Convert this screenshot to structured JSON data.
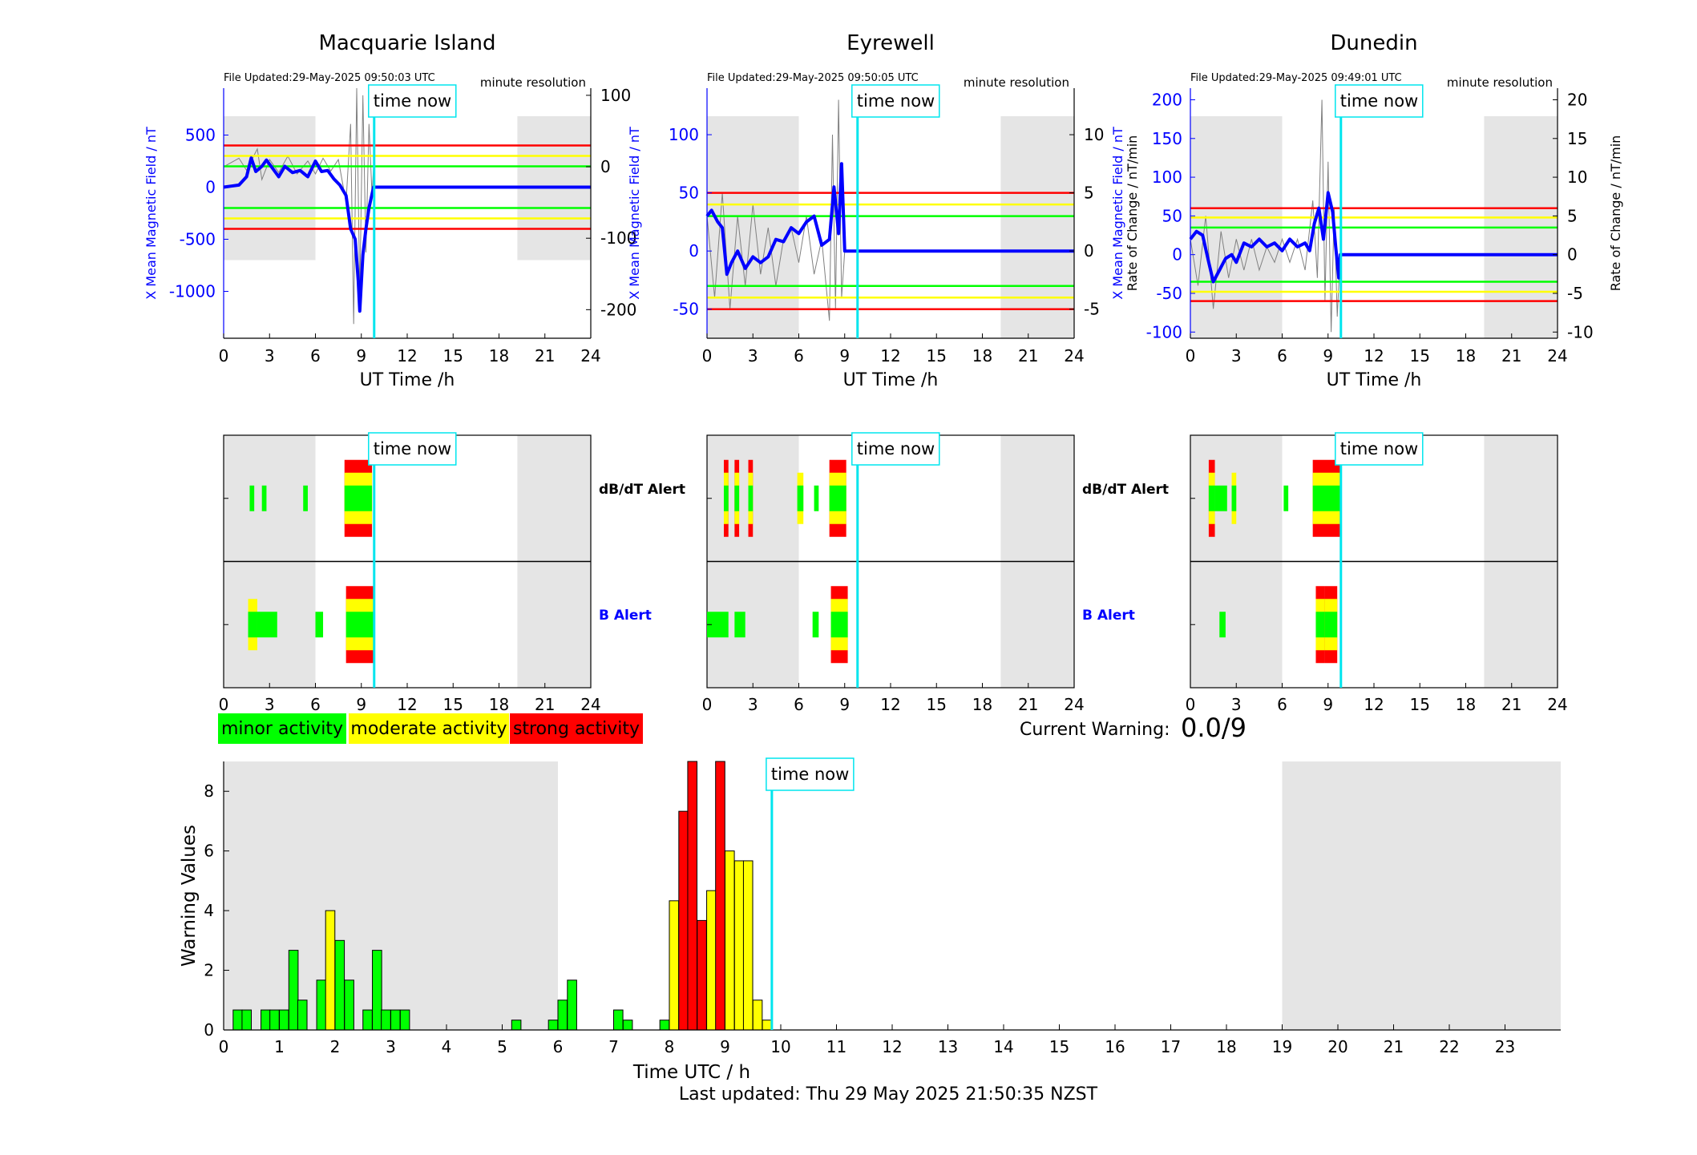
{
  "stations": [
    {
      "title": "Macquarie Island",
      "file_updated": "File Updated:29-May-2025 09:50:03 UTC",
      "resolution": "minute resolution",
      "left_ylabel": "X Mean Magnetic Field / nT",
      "right_ylabel": "",
      "b_ylim": [
        -1450,
        950
      ],
      "b_ticks": [
        500,
        0,
        -500,
        -1000
      ],
      "roc_ylim": [
        -240,
        110
      ],
      "roc_ticks": [
        100,
        0,
        -100,
        -200
      ],
      "threshold_lines": [
        {
          "value": 400,
          "color": "#ff0000"
        },
        {
          "value": 300,
          "color": "#ffff00"
        },
        {
          "value": 200,
          "color": "#00ff00"
        },
        {
          "value": -200,
          "color": "#00ff00"
        },
        {
          "value": -300,
          "color": "#ffff00"
        },
        {
          "value": -400,
          "color": "#ff0000"
        }
      ],
      "shade_ranges": [
        [
          0,
          6
        ],
        [
          19.2,
          24
        ]
      ],
      "shade_b": [
        -700,
        700
      ],
      "b_series": [
        [
          0,
          0
        ],
        [
          0.5,
          10
        ],
        [
          1,
          20
        ],
        [
          1.5,
          100
        ],
        [
          1.8,
          280
        ],
        [
          2.1,
          150
        ],
        [
          2.5,
          200
        ],
        [
          2.8,
          260
        ],
        [
          3.2,
          180
        ],
        [
          3.6,
          100
        ],
        [
          4,
          200
        ],
        [
          4.5,
          140
        ],
        [
          5,
          160
        ],
        [
          5.5,
          100
        ],
        [
          6,
          250
        ],
        [
          6.4,
          150
        ],
        [
          6.8,
          160
        ],
        [
          7.2,
          80
        ],
        [
          7.6,
          20
        ],
        [
          8,
          -80
        ],
        [
          8.3,
          -400
        ],
        [
          8.6,
          -500
        ],
        [
          8.8,
          -900
        ],
        [
          8.9,
          -1190
        ],
        [
          9.1,
          -650
        ],
        [
          9.3,
          -400
        ],
        [
          9.5,
          -200
        ],
        [
          9.8,
          0
        ],
        [
          24,
          0
        ]
      ],
      "roc_series": [
        [
          0,
          0
        ],
        [
          1,
          12
        ],
        [
          1.5,
          -5
        ],
        [
          2.2,
          25
        ],
        [
          2.5,
          -18
        ],
        [
          3,
          10
        ],
        [
          3.6,
          -8
        ],
        [
          4.2,
          15
        ],
        [
          4.8,
          -10
        ],
        [
          5.5,
          8
        ],
        [
          6,
          -10
        ],
        [
          6.5,
          12
        ],
        [
          7,
          -6
        ],
        [
          7.5,
          10
        ],
        [
          8,
          -50
        ],
        [
          8.3,
          60
        ],
        [
          8.5,
          -220
        ],
        [
          8.7,
          150
        ],
        [
          8.9,
          -180
        ],
        [
          9.1,
          100
        ],
        [
          9.3,
          -120
        ],
        [
          9.5,
          60
        ],
        [
          9.7,
          -40
        ],
        [
          9.8,
          0
        ]
      ],
      "dbdt_blocks": [
        {
          "t0": 1.7,
          "t1": 2.0,
          "levels": 1
        },
        {
          "t0": 2.5,
          "t1": 2.8,
          "levels": 1
        },
        {
          "t0": 5.2,
          "t1": 5.5,
          "levels": 1
        },
        {
          "t0": 7.9,
          "t1": 9.7,
          "levels": 3
        }
      ],
      "b_blocks": [
        {
          "t0": 1.6,
          "t1": 2.2,
          "levels": 2
        },
        {
          "t0": 2.2,
          "t1": 3.5,
          "levels": 1
        },
        {
          "t0": 6.0,
          "t1": 6.5,
          "levels": 1
        },
        {
          "t0": 8.0,
          "t1": 9.8,
          "levels": 3
        }
      ]
    },
    {
      "title": "Eyrewell",
      "file_updated": "File Updated:29-May-2025 09:50:05 UTC",
      "resolution": "minute resolution",
      "left_ylabel": "X Mean Magnetic Field / nT",
      "right_ylabel": "Rate of Change / nT/min",
      "b_ylim": [
        -75,
        140
      ],
      "b_ticks": [
        100,
        50,
        0,
        -50
      ],
      "roc_ylim": [
        -7.5,
        14
      ],
      "roc_ticks": [
        10,
        5,
        0,
        -5
      ],
      "threshold_lines": [
        {
          "value": 50,
          "color": "#ff0000"
        },
        {
          "value": 40,
          "color": "#ffff00"
        },
        {
          "value": 30,
          "color": "#00ff00"
        },
        {
          "value": -30,
          "color": "#00ff00"
        },
        {
          "value": -40,
          "color": "#ffff00"
        },
        {
          "value": -50,
          "color": "#ff0000"
        }
      ],
      "shade_ranges": [
        [
          0,
          6
        ],
        [
          19.2,
          24
        ]
      ],
      "shade_b": [
        -75,
        140
      ],
      "b_series": [
        [
          0,
          30
        ],
        [
          0.3,
          35
        ],
        [
          0.7,
          25
        ],
        [
          1,
          20
        ],
        [
          1.3,
          -20
        ],
        [
          1.6,
          -10
        ],
        [
          2,
          0
        ],
        [
          2.5,
          -15
        ],
        [
          3,
          -5
        ],
        [
          3.5,
          -10
        ],
        [
          4,
          -5
        ],
        [
          4.5,
          10
        ],
        [
          5,
          8
        ],
        [
          5.5,
          20
        ],
        [
          6,
          15
        ],
        [
          6.5,
          25
        ],
        [
          7,
          30
        ],
        [
          7.5,
          5
        ],
        [
          8,
          10
        ],
        [
          8.3,
          55
        ],
        [
          8.6,
          15
        ],
        [
          8.8,
          75
        ],
        [
          9,
          0
        ],
        [
          24,
          0
        ]
      ],
      "roc_series": [
        [
          0,
          3
        ],
        [
          0.5,
          -4
        ],
        [
          1,
          5
        ],
        [
          1.5,
          -5
        ],
        [
          2,
          3
        ],
        [
          2.5,
          -3
        ],
        [
          3,
          4
        ],
        [
          3.5,
          -2
        ],
        [
          4,
          2
        ],
        [
          4.5,
          -3
        ],
        [
          5,
          1
        ],
        [
          5.5,
          2
        ],
        [
          6,
          -1
        ],
        [
          6.5,
          3
        ],
        [
          7,
          -2
        ],
        [
          7.5,
          1
        ],
        [
          8,
          -6
        ],
        [
          8.2,
          10
        ],
        [
          8.4,
          -5
        ],
        [
          8.6,
          13
        ],
        [
          8.8,
          -4
        ],
        [
          9,
          0
        ]
      ],
      "dbdt_blocks": [
        {
          "t0": 1.1,
          "t1": 1.4,
          "levels": 3
        },
        {
          "t0": 1.8,
          "t1": 2.1,
          "levels": 3
        },
        {
          "t0": 2.7,
          "t1": 3.0,
          "levels": 3
        },
        {
          "t0": 5.9,
          "t1": 6.3,
          "levels": 2
        },
        {
          "t0": 7.0,
          "t1": 7.3,
          "levels": 1
        },
        {
          "t0": 8.0,
          "t1": 9.1,
          "levels": 3
        }
      ],
      "b_blocks": [
        {
          "t0": 0.0,
          "t1": 1.4,
          "levels": 1
        },
        {
          "t0": 1.8,
          "t1": 2.5,
          "levels": 1
        },
        {
          "t0": 6.9,
          "t1": 7.3,
          "levels": 1
        },
        {
          "t0": 8.1,
          "t1": 9.2,
          "levels": 3
        }
      ]
    },
    {
      "title": "Dunedin",
      "file_updated": "File Updated:29-May-2025 09:49:01 UTC",
      "resolution": "minute resolution",
      "left_ylabel": "X Mean Magnetic Field / nT",
      "right_ylabel": "Rate of Change / nT/min",
      "b_ylim": [
        -108,
        215
      ],
      "b_ticks": [
        200,
        150,
        100,
        50,
        0,
        -50,
        -100
      ],
      "roc_ylim": [
        -10.8,
        21.5
      ],
      "roc_ticks": [
        20,
        15,
        10,
        5,
        0,
        -5,
        -10
      ],
      "threshold_lines": [
        {
          "value": 60,
          "color": "#ff0000"
        },
        {
          "value": 48,
          "color": "#ffff00"
        },
        {
          "value": 35,
          "color": "#00ff00"
        },
        {
          "value": -35,
          "color": "#00ff00"
        },
        {
          "value": -48,
          "color": "#ffff00"
        },
        {
          "value": -60,
          "color": "#ff0000"
        }
      ],
      "shade_ranges": [
        [
          0,
          6
        ],
        [
          19.2,
          24
        ]
      ],
      "shade_b": [
        -108,
        215
      ],
      "b_series": [
        [
          0,
          20
        ],
        [
          0.4,
          30
        ],
        [
          0.8,
          25
        ],
        [
          1.2,
          -10
        ],
        [
          1.5,
          -35
        ],
        [
          1.9,
          -20
        ],
        [
          2.3,
          -5
        ],
        [
          2.7,
          0
        ],
        [
          3,
          -10
        ],
        [
          3.5,
          15
        ],
        [
          4,
          10
        ],
        [
          4.5,
          20
        ],
        [
          5,
          10
        ],
        [
          5.5,
          15
        ],
        [
          6,
          5
        ],
        [
          6.5,
          20
        ],
        [
          7,
          10
        ],
        [
          7.5,
          15
        ],
        [
          7.8,
          5
        ],
        [
          8.1,
          40
        ],
        [
          8.4,
          60
        ],
        [
          8.7,
          20
        ],
        [
          9,
          80
        ],
        [
          9.3,
          55
        ],
        [
          9.5,
          10
        ],
        [
          9.7,
          -30
        ],
        [
          9.8,
          0
        ],
        [
          24,
          0
        ]
      ],
      "roc_series": [
        [
          0,
          2
        ],
        [
          0.5,
          -4
        ],
        [
          1,
          5
        ],
        [
          1.5,
          -7
        ],
        [
          2,
          3
        ],
        [
          2.5,
          -3
        ],
        [
          3,
          2
        ],
        [
          3.5,
          -2
        ],
        [
          4,
          2
        ],
        [
          4.5,
          -2
        ],
        [
          5,
          1
        ],
        [
          5.5,
          -1
        ],
        [
          6,
          2
        ],
        [
          6.5,
          -1
        ],
        [
          7,
          2
        ],
        [
          7.5,
          -2
        ],
        [
          8,
          7
        ],
        [
          8.3,
          -3
        ],
        [
          8.6,
          20
        ],
        [
          8.8,
          -6
        ],
        [
          9,
          12
        ],
        [
          9.2,
          -10
        ],
        [
          9.4,
          6
        ],
        [
          9.6,
          -8
        ],
        [
          9.8,
          0
        ]
      ],
      "dbdt_blocks": [
        {
          "t0": 1.2,
          "t1": 1.6,
          "levels": 3
        },
        {
          "t0": 1.6,
          "t1": 2.4,
          "levels": 1
        },
        {
          "t0": 2.7,
          "t1": 3.0,
          "levels": 2
        },
        {
          "t0": 6.1,
          "t1": 6.4,
          "levels": 1
        },
        {
          "t0": 8.0,
          "t1": 9.8,
          "levels": 3
        }
      ],
      "b_blocks": [
        {
          "t0": 1.9,
          "t1": 2.3,
          "levels": 1
        },
        {
          "t0": 8.2,
          "t1": 8.8,
          "levels": 3
        },
        {
          "t0": 8.8,
          "t1": 9.6,
          "levels": 3
        }
      ]
    }
  ],
  "x_ticks": [
    0,
    3,
    6,
    9,
    12,
    15,
    18,
    21,
    24
  ],
  "x_label": "UT Time /h",
  "time_now_label": "time now",
  "time_now": 9.84,
  "dbdt_alert_label": "dB/dT Alert",
  "b_alert_label": "B Alert",
  "legend": {
    "minor": "minor activity",
    "moderate": "moderate activity",
    "strong": "strong activity"
  },
  "current_warning_label": "Current Warning:",
  "current_warning_value": "0.0/9",
  "colors": {
    "minor": "#00ff00",
    "moderate": "#ffff00",
    "strong": "#ff0000",
    "shade": "#e5e5e5",
    "time_now": "#00e5ee",
    "field_line": "#0000ff",
    "axis_blue": "#0000ff"
  },
  "chart_data": {
    "type": "bar",
    "xlabel": "Time UTC / h",
    "ylabel": "Warning Values",
    "xlim": [
      0,
      24
    ],
    "ylim": [
      0,
      9
    ],
    "x_ticks": [
      0,
      1,
      2,
      3,
      4,
      5,
      6,
      7,
      8,
      9,
      10,
      11,
      12,
      13,
      14,
      15,
      16,
      17,
      18,
      19,
      20,
      21,
      22,
      23
    ],
    "y_ticks": [
      0,
      2,
      4,
      6,
      8
    ],
    "shade_ranges": [
      [
        0,
        6
      ],
      [
        19,
        24
      ]
    ],
    "bar_width_h": 0.1667,
    "bars": [
      {
        "t": 0.17,
        "v": 0.67,
        "c": "minor"
      },
      {
        "t": 0.33,
        "v": 0.67,
        "c": "minor"
      },
      {
        "t": 0.67,
        "v": 0.67,
        "c": "minor"
      },
      {
        "t": 0.83,
        "v": 0.67,
        "c": "minor"
      },
      {
        "t": 1.0,
        "v": 0.67,
        "c": "minor"
      },
      {
        "t": 1.17,
        "v": 2.67,
        "c": "minor"
      },
      {
        "t": 1.33,
        "v": 1.0,
        "c": "minor"
      },
      {
        "t": 1.67,
        "v": 1.67,
        "c": "minor"
      },
      {
        "t": 1.83,
        "v": 4.0,
        "c": "moderate"
      },
      {
        "t": 2.0,
        "v": 3.0,
        "c": "minor"
      },
      {
        "t": 2.17,
        "v": 1.67,
        "c": "minor"
      },
      {
        "t": 2.5,
        "v": 0.67,
        "c": "minor"
      },
      {
        "t": 2.67,
        "v": 2.67,
        "c": "minor"
      },
      {
        "t": 2.83,
        "v": 0.67,
        "c": "minor"
      },
      {
        "t": 3.0,
        "v": 0.67,
        "c": "minor"
      },
      {
        "t": 3.17,
        "v": 0.67,
        "c": "minor"
      },
      {
        "t": 5.17,
        "v": 0.33,
        "c": "minor"
      },
      {
        "t": 5.83,
        "v": 0.33,
        "c": "minor"
      },
      {
        "t": 6.0,
        "v": 1.0,
        "c": "minor"
      },
      {
        "t": 6.17,
        "v": 1.67,
        "c": "minor"
      },
      {
        "t": 7.0,
        "v": 0.67,
        "c": "minor"
      },
      {
        "t": 7.17,
        "v": 0.33,
        "c": "minor"
      },
      {
        "t": 7.83,
        "v": 0.33,
        "c": "minor"
      },
      {
        "t": 8.0,
        "v": 4.33,
        "c": "moderate"
      },
      {
        "t": 8.17,
        "v": 7.33,
        "c": "strong"
      },
      {
        "t": 8.33,
        "v": 9.0,
        "c": "strong"
      },
      {
        "t": 8.5,
        "v": 3.67,
        "c": "strong"
      },
      {
        "t": 8.67,
        "v": 4.67,
        "c": "moderate"
      },
      {
        "t": 8.83,
        "v": 9.0,
        "c": "strong"
      },
      {
        "t": 9.0,
        "v": 6.0,
        "c": "moderate"
      },
      {
        "t": 9.17,
        "v": 5.67,
        "c": "moderate"
      },
      {
        "t": 9.33,
        "v": 5.67,
        "c": "moderate"
      },
      {
        "t": 9.5,
        "v": 1.0,
        "c": "moderate"
      },
      {
        "t": 9.67,
        "v": 0.33,
        "c": "moderate"
      }
    ],
    "time_now": 9.84,
    "time_now_label": "time now"
  },
  "footer": "Last updated: Thu 29 May 2025 21:50:35 NZST"
}
